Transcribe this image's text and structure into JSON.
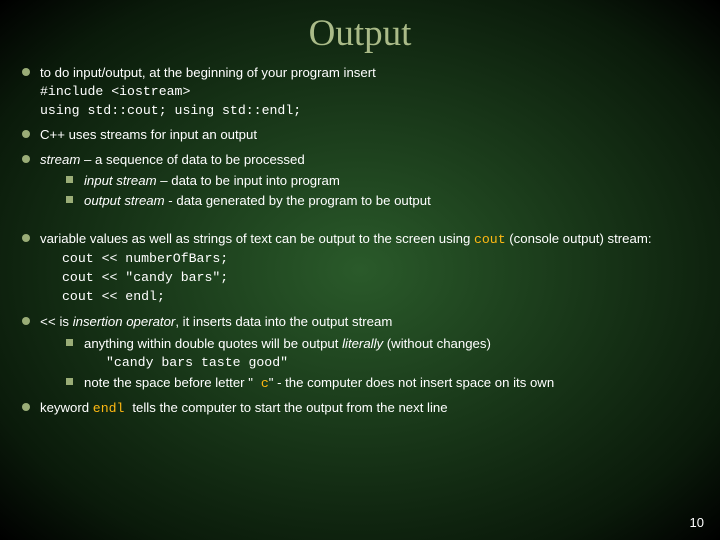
{
  "slide": {
    "title": "Output",
    "background": {
      "gradient_center": "#2a5a2a",
      "gradient_mid": "#1a3a1a",
      "gradient_outer": "#0a1a0a",
      "gradient_edge": "#000000"
    },
    "title_color": "#aabb88",
    "title_fontsize": 37,
    "body_color": "#ffffff",
    "body_fontsize": 13.2,
    "bullet_color": "#9aad77",
    "code_color": "#fdb813",
    "points": [
      {
        "text_parts": [
          {
            "t": "to do input/output, at the beginning of your program insert",
            "cls": ""
          }
        ],
        "lines_after": [
          {
            "t": "#include <iostream>",
            "cls": "mono-white"
          },
          {
            "t": "using std::cout; using std::endl;",
            "cls": "mono-white"
          }
        ]
      },
      {
        "text_parts": [
          {
            "t": "C++ uses streams for input an output",
            "cls": ""
          }
        ]
      },
      {
        "text_parts": [
          {
            "t": "stream",
            "cls": "italic"
          },
          {
            "t": "  – a  sequence of data to be processed",
            "cls": ""
          }
        ],
        "sub": [
          {
            "parts": [
              {
                "t": "input stream",
                "cls": "italic"
              },
              {
                "t": " – data to be input into program",
                "cls": ""
              }
            ]
          },
          {
            "parts": [
              {
                "t": "output stream",
                "cls": "italic"
              },
              {
                "t": "  - data generated by the program to be output",
                "cls": ""
              }
            ]
          }
        ]
      },
      {
        "gap": true
      },
      {
        "text_parts": [
          {
            "t": "variable values as well as strings of text can be output to the screen using ",
            "cls": ""
          },
          {
            "t": "cout",
            "cls": "mono"
          },
          {
            "t": " (console output) stream:",
            "cls": ""
          }
        ],
        "lines_after": [
          {
            "t": "cout << numberOfBars;",
            "cls": "mono-white",
            "indent": true
          },
          {
            "t": "cout << \"candy bars\";",
            "cls": "mono-white",
            "indent": true
          },
          {
            "t": "cout << endl;",
            "cls": "mono-white",
            "indent": true
          }
        ]
      },
      {
        "text_parts": [
          {
            "t": "<<",
            "cls": "mono-white"
          },
          {
            "t": " is ",
            "cls": ""
          },
          {
            "t": "insertion operator",
            "cls": "italic"
          },
          {
            "t": ", it inserts data into the output stream",
            "cls": ""
          }
        ],
        "sub": [
          {
            "parts": [
              {
                "t": "anything within double quotes will be output ",
                "cls": ""
              },
              {
                "t": "literally",
                "cls": "italic"
              },
              {
                "t": " (without changes)",
                "cls": ""
              }
            ],
            "lines_after": [
              {
                "t": "\"candy bars taste good\"",
                "cls": "mono-white",
                "indent": true
              }
            ]
          },
          {
            "parts": [
              {
                "t": "note the space before letter \"",
                "cls": ""
              },
              {
                "t": " c",
                "cls": "mono"
              },
              {
                "t": "\" - the computer does not insert space on its own",
                "cls": ""
              }
            ]
          }
        ]
      },
      {
        "text_parts": [
          {
            "t": "keyword ",
            "cls": ""
          },
          {
            "t": " endl ",
            "cls": "mono"
          },
          {
            "t": "tells the computer to start the output from the next line",
            "cls": ""
          }
        ]
      }
    ],
    "page_number": "10"
  }
}
